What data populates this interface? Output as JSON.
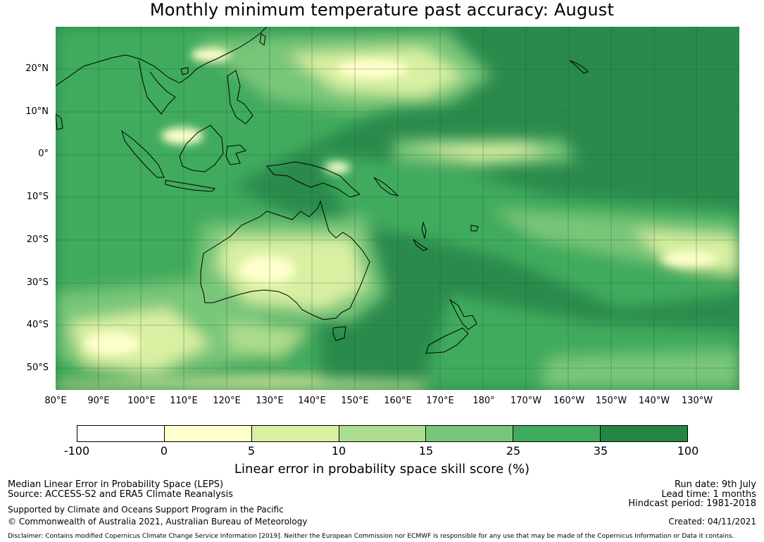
{
  "title": "Monthly minimum temperature past accuracy: August",
  "map": {
    "lat_labels": [
      "20°N",
      "10°N",
      "0°",
      "10°S",
      "20°S",
      "30°S",
      "40°S",
      "50°S"
    ],
    "lon_labels": [
      "80°E",
      "90°E",
      "100°E",
      "110°E",
      "120°E",
      "130°E",
      "140°E",
      "150°E",
      "160°E",
      "170°E",
      "180°",
      "170°W",
      "160°W",
      "150°W",
      "140°W",
      "130°W"
    ],
    "extent": {
      "lon": [
        80,
        240
      ],
      "lat": [
        -55,
        30
      ]
    },
    "background_color": "#2a8a4c"
  },
  "colorbar": {
    "ticks": [
      "-100",
      "0",
      "5",
      "10",
      "15",
      "25",
      "35",
      "100"
    ],
    "colors": [
      "#ffffff",
      "#ffffcc",
      "#d9f0a3",
      "#addd8e",
      "#78c679",
      "#41ab5d",
      "#238443"
    ],
    "label": "Linear error in probability space skill score (%)"
  },
  "footer": {
    "left": {
      "line1": "Median Linear Error in Probability Space (LEPS)",
      "line2": "Source: ACCESS-S2 and ERA5 Climate Reanalysis",
      "line3": "Supported by Climate and Oceans Support Program in the Pacific",
      "line4": "© Commonwealth of Australia 2021, Australian Bureau of Meteorology"
    },
    "right": {
      "run_date": "Run date: 9th July",
      "lead_time": "Lead time: 1 months",
      "hindcast": "Hindcast period: 1981-2018",
      "created": "Created: 04/11/2021"
    },
    "disclaimer": "Disclaimer: Contains modified Copernicus Climate Change Service Information [2019]. Neither the European Commission nor ECMWF is responsible for any use that may be made of the Copernicus Information or Data it contains."
  }
}
